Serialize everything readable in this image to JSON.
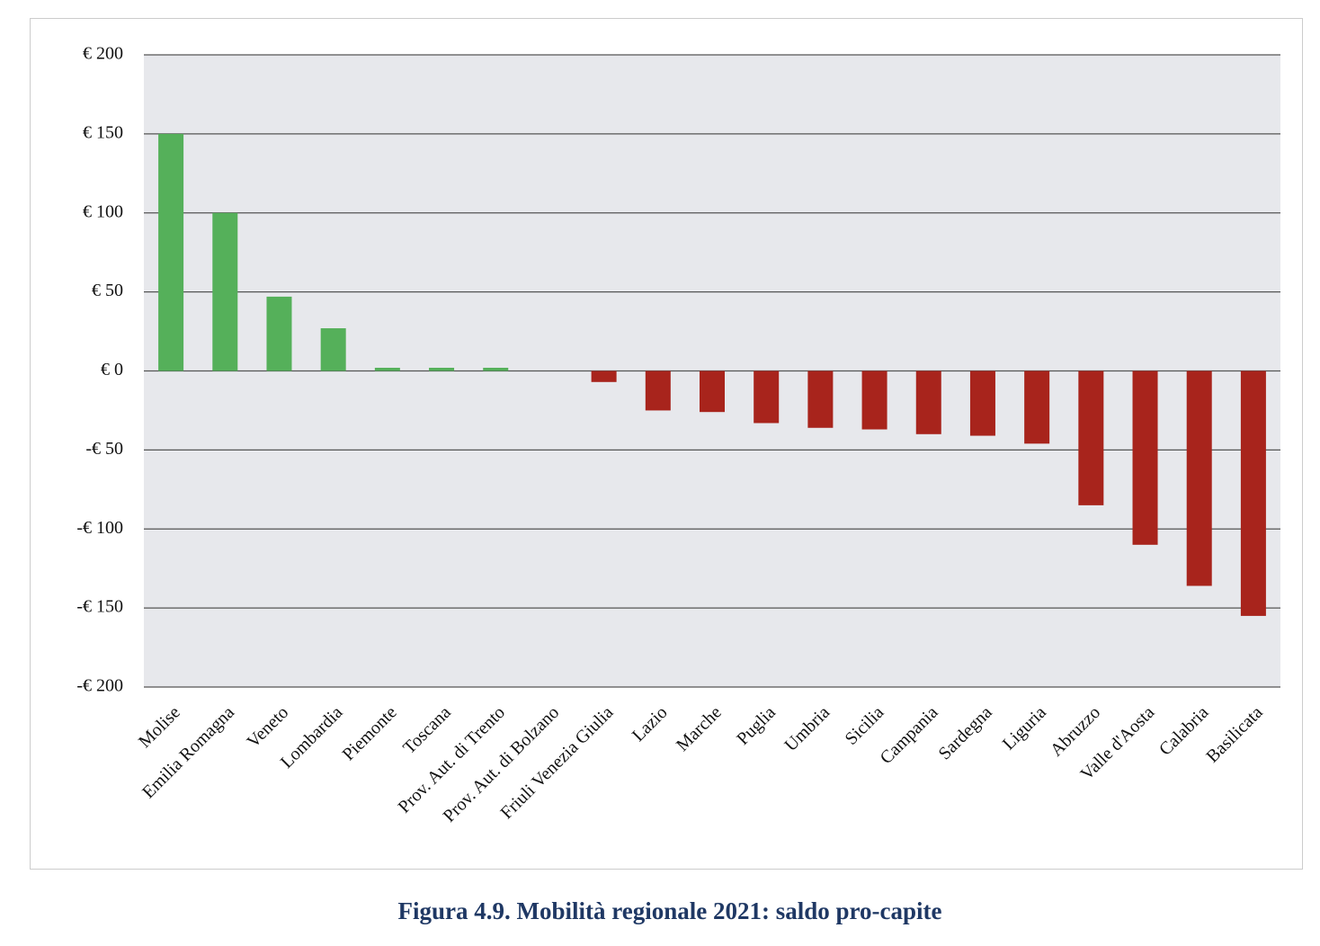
{
  "chart_data": {
    "type": "bar",
    "title": "Figura 4.9. Mobilità regionale 2021: saldo pro-capite",
    "categories": [
      "Molise",
      "Emilia Romagna",
      "Veneto",
      "Lombardia",
      "Piemonte",
      "Toscana",
      "Prov. Aut. di Trento",
      "Prov. Aut. di Bolzano",
      "Friuli Venezia Giulia",
      "Lazio",
      "Marche",
      "Puglia",
      "Umbria",
      "Sicilia",
      "Campania",
      "Sardegna",
      "Liguria",
      "Abruzzo",
      "Valle d'Aosta",
      "Calabria",
      "Basilicata"
    ],
    "values": [
      150,
      100,
      47,
      27,
      2,
      2,
      2,
      0,
      -7,
      -25,
      -26,
      -33,
      -36,
      -37,
      -40,
      -41,
      -46,
      -85,
      -110,
      -136,
      -155
    ],
    "color_positive": "#55b05a",
    "color_negative": "#a8241c",
    "ylim": [
      -200,
      200
    ],
    "yticks": [
      {
        "value": -200,
        "label": "-€ 200"
      },
      {
        "value": -150,
        "label": "-€ 150"
      },
      {
        "value": -100,
        "label": "-€ 100"
      },
      {
        "value": -50,
        "label": "-€ 50"
      },
      {
        "value": 0,
        "label": "€ 0"
      },
      {
        "value": 50,
        "label": "€ 50"
      },
      {
        "value": 100,
        "label": "€ 100"
      },
      {
        "value": 150,
        "label": "€ 150"
      },
      {
        "value": 200,
        "label": "€ 200"
      }
    ],
    "grid": true
  }
}
